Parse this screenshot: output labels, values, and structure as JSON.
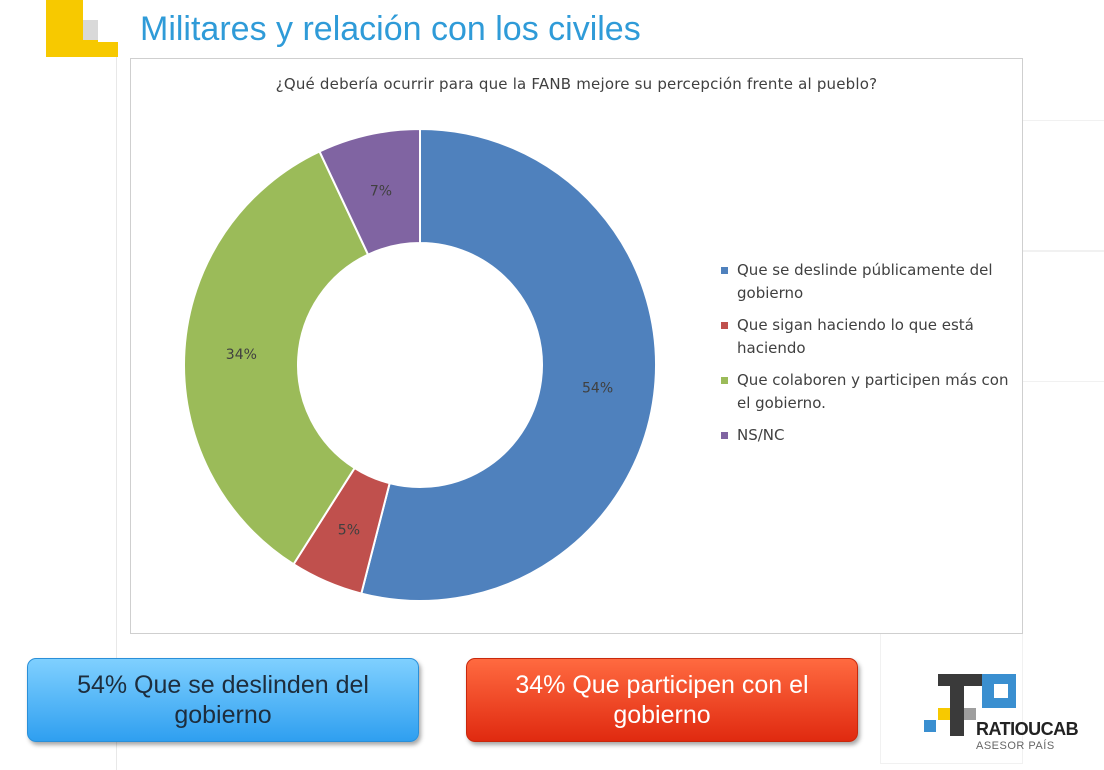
{
  "slide": {
    "title": "Militares y relación con los civiles"
  },
  "chart_data": {
    "type": "pie",
    "donut": true,
    "title": "¿Qué debería ocurrir para que la FANB mejore su percepción frente al pueblo?",
    "legend_position": "right",
    "categories": [
      "Que se deslinde públicamente del gobierno",
      "Que sigan haciendo lo que está haciendo",
      "Que colaboren y participen más con el gobierno.",
      "NS/NC"
    ],
    "values": [
      54,
      5,
      34,
      7
    ],
    "data_labels": [
      "54%",
      "5%",
      "34%",
      "7%"
    ],
    "colors": [
      "#4f81bd",
      "#c0504d",
      "#9bbb59",
      "#8064a2"
    ]
  },
  "callouts": {
    "left": "54% Que se deslinden del gobierno",
    "right": "34% Que participen con el gobierno"
  },
  "brand": {
    "name": "RATIOUCAB",
    "tagline": "ASESOR PAÍS"
  }
}
